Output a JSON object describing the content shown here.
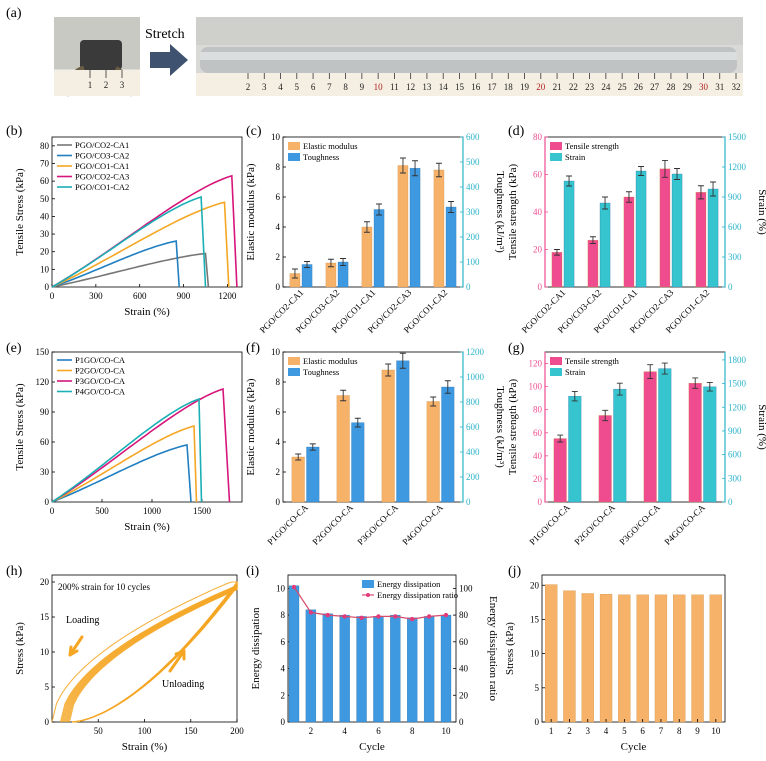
{
  "figure": {
    "panel_a": {
      "label": "(a)",
      "arrow_text": "Stretch",
      "ruler_short": [
        "1",
        "2",
        "3"
      ],
      "ruler_long": [
        "2",
        "3",
        "4",
        "5",
        "6",
        "7",
        "8",
        "9",
        "10",
        "11",
        "12",
        "13",
        "14",
        "15",
        "16",
        "17",
        "18",
        "19",
        "20",
        "21",
        "22",
        "23",
        "24",
        "25",
        "26",
        "27",
        "28",
        "29",
        "30",
        "31",
        "32"
      ]
    }
  },
  "colors": {
    "gray": "#777777",
    "blue": "#1f7fc0",
    "orange": "#f5a623",
    "magenta": "#d6157a",
    "teal": "#1aafb5",
    "pink": "#ee4c8f",
    "cyan": "#36c4cf",
    "bar_orange": "#f7b26a",
    "bar_blue": "#3e99e0",
    "axis_cyan": "#2ab3c9",
    "line_red": "#d94a6b"
  },
  "chart_data": [
    {
      "id": "b",
      "panel": "(b)",
      "type": "line",
      "xlabel": "Strain (%)",
      "ylabel": "Tensile Stress (kPa)",
      "xlim": [
        0,
        1300
      ],
      "ylim": [
        0,
        85
      ],
      "xticks": [
        "0",
        "300",
        "600",
        "900",
        "1200"
      ],
      "xtick_values": [
        0,
        300,
        600,
        900,
        1200
      ],
      "yticks": [
        "0",
        "10",
        "20",
        "30",
        "40",
        "50",
        "60",
        "70",
        "80"
      ],
      "ytick_values": [
        0,
        10,
        20,
        30,
        40,
        50,
        60,
        70,
        80
      ],
      "legend_position": "top-left",
      "series": [
        {
          "name": "PGO/CO2-CA1",
          "color": "#777777",
          "peak_x": 1050,
          "peak_y": 19,
          "break_x": 1070
        },
        {
          "name": "PGO/CO3-CA2",
          "color": "#1f7fc0",
          "peak_x": 850,
          "peak_y": 26,
          "break_x": 870
        },
        {
          "name": "PGO/CO1-CA1",
          "color": "#f5a623",
          "peak_x": 1180,
          "peak_y": 48,
          "break_x": 1210
        },
        {
          "name": "PGO/CO2-CA3",
          "color": "#d6157a",
          "peak_x": 1230,
          "peak_y": 63,
          "break_x": 1265
        },
        {
          "name": "PGO/CO1-CA2",
          "color": "#1aafb5",
          "peak_x": 1020,
          "peak_y": 51,
          "break_x": 1050
        }
      ]
    },
    {
      "id": "c",
      "panel": "(c)",
      "type": "bar",
      "categories": [
        "PGO/CO2-CA1",
        "PGO/CO3-CA2",
        "PGO/CO1-CA1",
        "PGO/CO2-CA3",
        "PGO/CO1-CA2"
      ],
      "ylabel": "Elastic modulus (kPa)",
      "y2label": "Toughness (kJ/m³)",
      "ylim": [
        0,
        10
      ],
      "y2lim": [
        0,
        600
      ],
      "yticks": [
        "0",
        "2",
        "4",
        "6",
        "8",
        "10"
      ],
      "ytick_values": [
        0,
        2,
        4,
        6,
        8,
        10
      ],
      "y2ticks": [
        "0",
        "100",
        "200",
        "300",
        "400",
        "500",
        "600"
      ],
      "y2tick_values": [
        0,
        100,
        200,
        300,
        400,
        500,
        600
      ],
      "series": [
        {
          "name": "Elastic modulus",
          "axis": "left",
          "values": [
            0.9,
            1.6,
            4.0,
            8.1,
            7.8
          ],
          "errors": [
            0.3,
            0.25,
            0.35,
            0.5,
            0.45
          ]
        },
        {
          "name": "Toughness",
          "axis": "right",
          "values": [
            90,
            100,
            310,
            475,
            320
          ],
          "errors": [
            12,
            14,
            22,
            30,
            22
          ]
        }
      ]
    },
    {
      "id": "d",
      "panel": "(d)",
      "type": "bar",
      "categories": [
        "PGO/CO2-CA1",
        "PGO/CO3-CA2",
        "PGO/CO1-CA1",
        "PGO/CO2-CA3",
        "PGO/CO1-CA2"
      ],
      "ylabel": "Tensile strength (kPa)",
      "y2label": "Strain (%)",
      "ylim": [
        0,
        80
      ],
      "y2lim": [
        0,
        1500
      ],
      "yticks": [
        "0",
        "20",
        "40",
        "60",
        "80"
      ],
      "ytick_values": [
        0,
        20,
        40,
        60,
        80
      ],
      "y2ticks": [
        "0",
        "300",
        "600",
        "900",
        "1200",
        "1500"
      ],
      "y2tick_values": [
        0,
        300,
        600,
        900,
        1200,
        1500
      ],
      "series": [
        {
          "name": "Tensile strength",
          "axis": "left",
          "values": [
            18.5,
            25,
            48,
            63,
            50.5
          ],
          "errors": [
            1.5,
            1.8,
            2.8,
            4.5,
            3.5
          ]
        },
        {
          "name": "Strain",
          "axis": "right",
          "values": [
            1060,
            840,
            1160,
            1130,
            980
          ],
          "errors": [
            50,
            60,
            45,
            55,
            70
          ]
        }
      ]
    },
    {
      "id": "e",
      "panel": "(e)",
      "type": "line",
      "xlabel": "Strain (%)",
      "ylabel": "Tensile Stress (kPa)",
      "xlim": [
        0,
        1900
      ],
      "ylim": [
        0,
        150
      ],
      "xticks": [
        "0",
        "500",
        "1000",
        "1500"
      ],
      "xtick_values": [
        0,
        500,
        1000,
        1500
      ],
      "yticks": [
        "0",
        "30",
        "60",
        "90",
        "120",
        "150"
      ],
      "ytick_values": [
        0,
        30,
        60,
        90,
        120,
        150
      ],
      "legend_position": "top-left",
      "series": [
        {
          "name": "P1GO/CO-CA",
          "color": "#1f7fc0",
          "peak_x": 1350,
          "peak_y": 57,
          "break_x": 1390
        },
        {
          "name": "P2GO/CO-CA",
          "color": "#f5a623",
          "peak_x": 1420,
          "peak_y": 76,
          "break_x": 1445
        },
        {
          "name": "P3GO/CO-CA",
          "color": "#d6157a",
          "peak_x": 1710,
          "peak_y": 113,
          "break_x": 1775
        },
        {
          "name": "P4GO/CO-CA",
          "color": "#1aafb5",
          "peak_x": 1470,
          "peak_y": 103,
          "break_x": 1495
        }
      ]
    },
    {
      "id": "f",
      "panel": "(f)",
      "type": "bar",
      "categories": [
        "P1GO/CO-CA",
        "P2GO/CO-CA",
        "P3GO/CO-CA",
        "P4GO/CO-CA"
      ],
      "ylabel": "Elastic modulus (kPa)",
      "y2label": "Toughness (kJ/m³)",
      "ylim": [
        0,
        10
      ],
      "y2lim": [
        0,
        1200
      ],
      "yticks": [
        "0",
        "2",
        "4",
        "6",
        "8",
        "10"
      ],
      "ytick_values": [
        0,
        2,
        4,
        6,
        8,
        10
      ],
      "y2ticks": [
        "0",
        "200",
        "400",
        "600",
        "800",
        "1000",
        "1200"
      ],
      "y2tick_values": [
        0,
        200,
        400,
        600,
        800,
        1000,
        1200
      ],
      "series": [
        {
          "name": "Elastic modulus",
          "axis": "left",
          "values": [
            3.0,
            7.1,
            8.8,
            6.7
          ],
          "errors": [
            0.2,
            0.35,
            0.4,
            0.3
          ]
        },
        {
          "name": "Toughness",
          "axis": "right",
          "values": [
            440,
            635,
            1130,
            920
          ],
          "errors": [
            25,
            35,
            60,
            50
          ]
        }
      ]
    },
    {
      "id": "g",
      "panel": "(g)",
      "type": "bar",
      "categories": [
        "P1GO/CO-CA",
        "P2GO/CO-CA",
        "P3GO/CO-CA",
        "P4GO/CO-CA"
      ],
      "ylabel": "Tensile strength (kPa)",
      "y2label": "Strain (%)",
      "ylim": [
        0,
        130
      ],
      "y2lim": [
        0,
        1900
      ],
      "yticks": [
        "0",
        "20",
        "40",
        "60",
        "80",
        "100",
        "120"
      ],
      "ytick_values": [
        0,
        20,
        40,
        60,
        80,
        100,
        120
      ],
      "y2ticks": [
        "0",
        "300",
        "600",
        "900",
        "1200",
        "1500",
        "1800"
      ],
      "y2tick_values": [
        0,
        300,
        600,
        900,
        1200,
        1500,
        1800
      ],
      "series": [
        {
          "name": "Tensile strength",
          "axis": "left",
          "values": [
            55,
            75,
            113,
            103
          ],
          "errors": [
            3,
            4.5,
            6,
            4.5
          ]
        },
        {
          "name": "Strain",
          "axis": "right",
          "values": [
            1340,
            1430,
            1690,
            1460
          ],
          "errors": [
            60,
            75,
            70,
            55
          ]
        }
      ]
    },
    {
      "id": "h",
      "panel": "(h)",
      "type": "line",
      "xlabel": "Strain (%)",
      "ylabel": "Stress (kPa)",
      "xlim": [
        0,
        200
      ],
      "ylim": [
        0,
        21
      ],
      "xticks": [
        "50",
        "100",
        "150",
        "200"
      ],
      "xtick_values": [
        50,
        100,
        150,
        200
      ],
      "yticks": [
        "0",
        "5",
        "10",
        "15",
        "20"
      ],
      "ytick_values": [
        0,
        5,
        10,
        15,
        20
      ],
      "annotation": "200% strain for 10 cycles",
      "loading_label": "Loading",
      "unloading_label": "Unloading",
      "cycles": 10,
      "max_strain": 200,
      "max_stress": 20,
      "color": "#f5a623"
    },
    {
      "id": "i",
      "panel": "(i)",
      "type": "bar",
      "xlabel": "Cycle",
      "ylabel": "Energy dissipation",
      "y2label": "Energy dissipation ratio",
      "categories": [
        "1",
        "2",
        "3",
        "4",
        "5",
        "6",
        "7",
        "8",
        "9",
        "10"
      ],
      "xticks": [
        "2",
        "4",
        "6",
        "8",
        "10"
      ],
      "xtick_values": [
        2,
        4,
        6,
        8,
        10
      ],
      "ylim": [
        0,
        11
      ],
      "y2lim": [
        0,
        110
      ],
      "yticks": [
        "0",
        "2",
        "4",
        "6",
        "8",
        "10"
      ],
      "ytick_values": [
        0,
        2,
        4,
        6,
        8,
        10
      ],
      "y2ticks": [
        "0",
        "20",
        "40",
        "60",
        "80",
        "100"
      ],
      "y2tick_values": [
        0,
        20,
        40,
        60,
        80,
        100
      ],
      "series": [
        {
          "name": "Energy dissipation",
          "axis": "left",
          "values": [
            10.2,
            8.4,
            8.1,
            8.0,
            7.9,
            7.9,
            8.0,
            7.8,
            7.9,
            8.0
          ]
        },
        {
          "name": "Energy dissipation ratio",
          "axis": "right",
          "values": [
            101,
            82,
            80,
            79,
            78,
            79,
            79,
            77,
            79,
            80
          ]
        }
      ]
    },
    {
      "id": "j",
      "panel": "(j)",
      "type": "bar",
      "xlabel": "Cycle",
      "ylabel": "Stress (kPa)",
      "categories": [
        "1",
        "2",
        "3",
        "4",
        "5",
        "6",
        "7",
        "8",
        "9",
        "10"
      ],
      "ylim": [
        0,
        21.5
      ],
      "yticks": [
        "0",
        "5",
        "10",
        "15",
        "20"
      ],
      "ytick_values": [
        0,
        5,
        10,
        15,
        20
      ],
      "series": [
        {
          "name": "Stress",
          "values": [
            20.1,
            19.2,
            18.8,
            18.7,
            18.6,
            18.6,
            18.6,
            18.6,
            18.6,
            18.6
          ]
        }
      ]
    }
  ]
}
